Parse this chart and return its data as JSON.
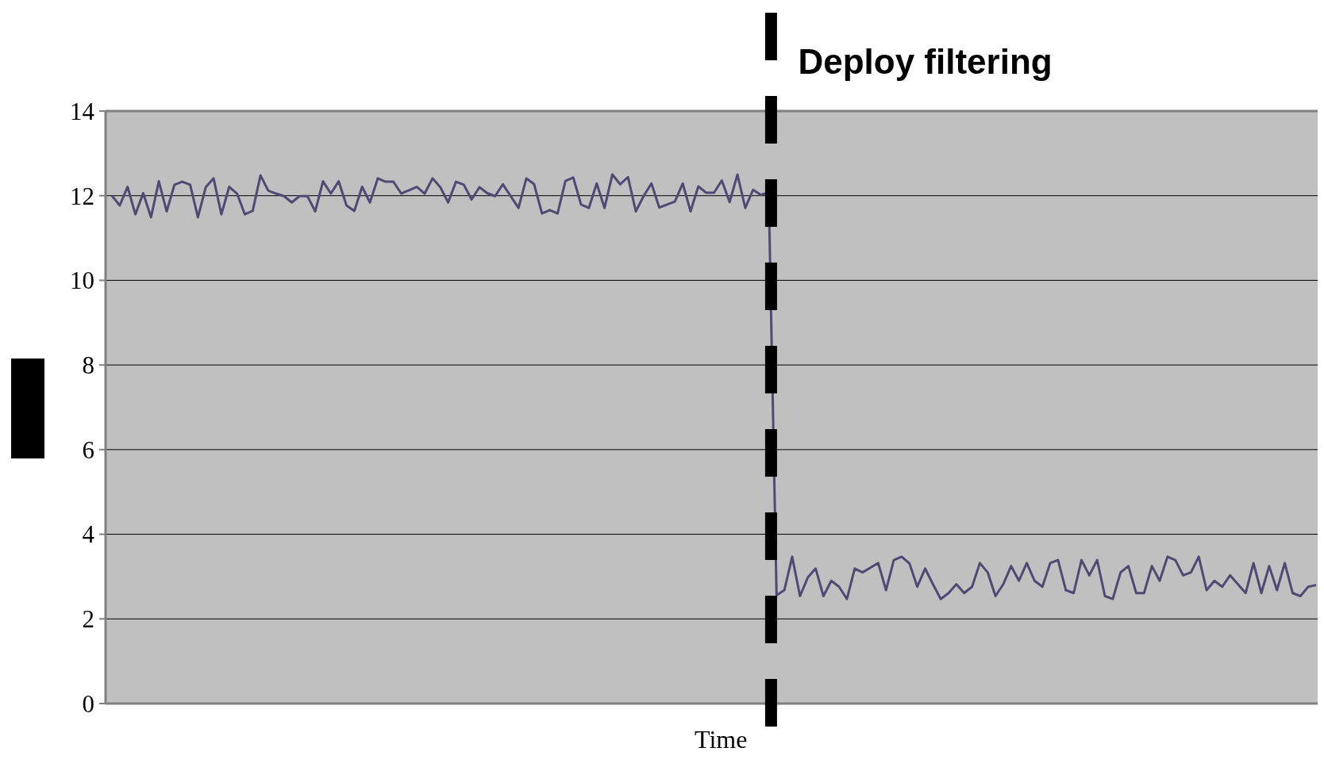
{
  "chart_data": {
    "type": "line",
    "xlabel": "Time",
    "categories": [
      null,
      null,
      null,
      null,
      null,
      null,
      null,
      null,
      null,
      null,
      null,
      null,
      null,
      null,
      null,
      null,
      null,
      null,
      null,
      null,
      null,
      null,
      null,
      null,
      null,
      null,
      null,
      null,
      null,
      null,
      null,
      null,
      null,
      null,
      null,
      null,
      null,
      null,
      null,
      null,
      null,
      null,
      null,
      null,
      null,
      null,
      null,
      null,
      null,
      null,
      null,
      null,
      null,
      null,
      null,
      null,
      null,
      null,
      null,
      null,
      null,
      null,
      null,
      null,
      null,
      null,
      null,
      null,
      null,
      null,
      null,
      null,
      null,
      null,
      null,
      null,
      null,
      null,
      null,
      null,
      null,
      null,
      null,
      null,
      null,
      null,
      null,
      null,
      null,
      null,
      null,
      null,
      null,
      null,
      null,
      null,
      null,
      null,
      null,
      null,
      null,
      null,
      null,
      null,
      null,
      null,
      null,
      null,
      null,
      null,
      null,
      null,
      null,
      null,
      null,
      null,
      null,
      null,
      null,
      null,
      null,
      null,
      null,
      null,
      null,
      null,
      null,
      null,
      null,
      null,
      null,
      null,
      null,
      null,
      null,
      null,
      null,
      null,
      null,
      null,
      null,
      null,
      null,
      null,
      null,
      null,
      null,
      null,
      null,
      null,
      null,
      null,
      null,
      null,
      null
    ],
    "ylim": [
      0,
      14
    ],
    "yticks": [
      0,
      2,
      4,
      6,
      8,
      10,
      12,
      14
    ],
    "tick_labels": "y",
    "grid": "y",
    "line_style": "solid",
    "annotations": [
      "Deploy filtering"
    ],
    "series": [
      {
        "color": "#4f4a74",
        "values": [
          12.0,
          11.77,
          12.21,
          11.56,
          12.06,
          11.49,
          12.34,
          11.63,
          12.26,
          12.33,
          12.26,
          11.49,
          12.2,
          12.41,
          11.56,
          12.21,
          12.05,
          11.56,
          11.64,
          12.48,
          12.12,
          12.05,
          11.99,
          11.84,
          11.99,
          11.99,
          11.63,
          12.34,
          12.05,
          12.34,
          11.77,
          11.64,
          12.21,
          11.84,
          12.41,
          12.33,
          12.33,
          12.05,
          12.13,
          12.21,
          12.05,
          12.41,
          12.2,
          11.84,
          12.33,
          12.26,
          11.91,
          12.2,
          12.06,
          11.99,
          12.27,
          11.99,
          11.71,
          12.41,
          12.27,
          11.58,
          11.66,
          11.58,
          12.35,
          12.43,
          11.79,
          11.71,
          12.29,
          11.71,
          12.5,
          12.27,
          12.44,
          11.63,
          11.99,
          12.29,
          11.72,
          11.79,
          11.86,
          12.29,
          11.63,
          12.22,
          12.07,
          12.07,
          12.36,
          11.85,
          12.5,
          11.71,
          12.14,
          12.02,
          12.08,
          2.56,
          2.68,
          3.47,
          2.54,
          2.98,
          3.19,
          2.54,
          2.9,
          2.76,
          2.47,
          3.19,
          3.1,
          3.21,
          3.32,
          2.68,
          3.39,
          3.47,
          3.31,
          2.76,
          3.19,
          2.82,
          2.47,
          2.61,
          2.82,
          2.61,
          2.76,
          3.32,
          3.1,
          2.54,
          2.82,
          3.25,
          2.9,
          3.32,
          2.9,
          2.76,
          3.32,
          3.39,
          2.68,
          2.61,
          3.39,
          3.03,
          3.39,
          2.54,
          2.47,
          3.1,
          3.25,
          2.61,
          2.61,
          3.25,
          2.9,
          3.47,
          3.39,
          3.03,
          3.1,
          3.47,
          2.68,
          2.9,
          2.76,
          3.03,
          2.82,
          2.61,
          3.32,
          2.61,
          3.25,
          2.68,
          3.32,
          2.61,
          2.54,
          2.76,
          2.8
        ]
      }
    ]
  }
}
